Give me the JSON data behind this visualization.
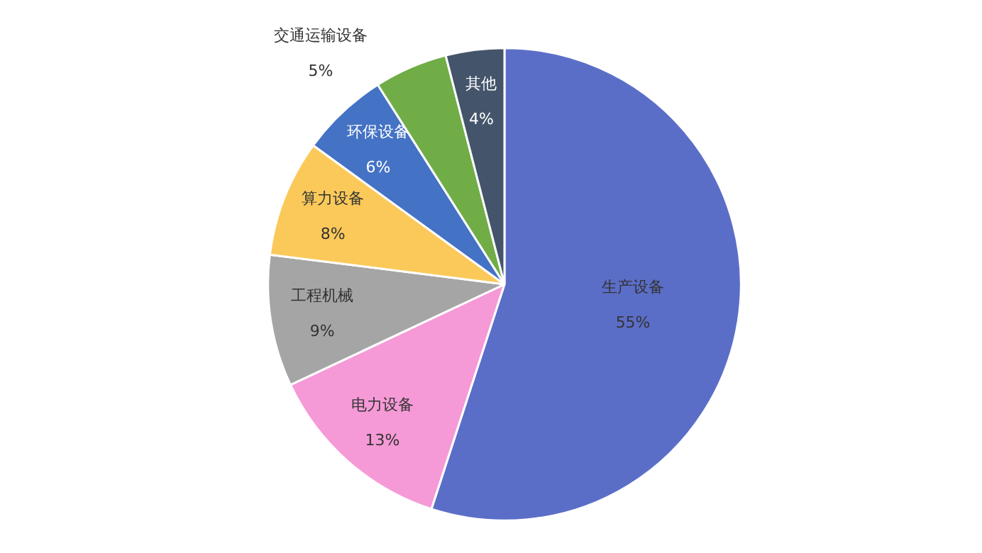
{
  "chart_data": {
    "type": "pie",
    "categories": [
      "生产设备",
      "电力设备",
      "工程机械",
      "算力设备",
      "环保设备",
      "交通运输设备",
      "其他"
    ],
    "values": [
      55,
      13,
      9,
      8,
      6,
      5,
      4
    ],
    "value_labels": [
      "55%",
      "13%",
      "9%",
      "8%",
      "6%",
      "5%",
      "4%"
    ],
    "colors": [
      "#5b6ec7",
      "#f59ad6",
      "#a5a5a5",
      "#fbc95a",
      "#4472c4",
      "#70ad47",
      "#44546a"
    ]
  }
}
